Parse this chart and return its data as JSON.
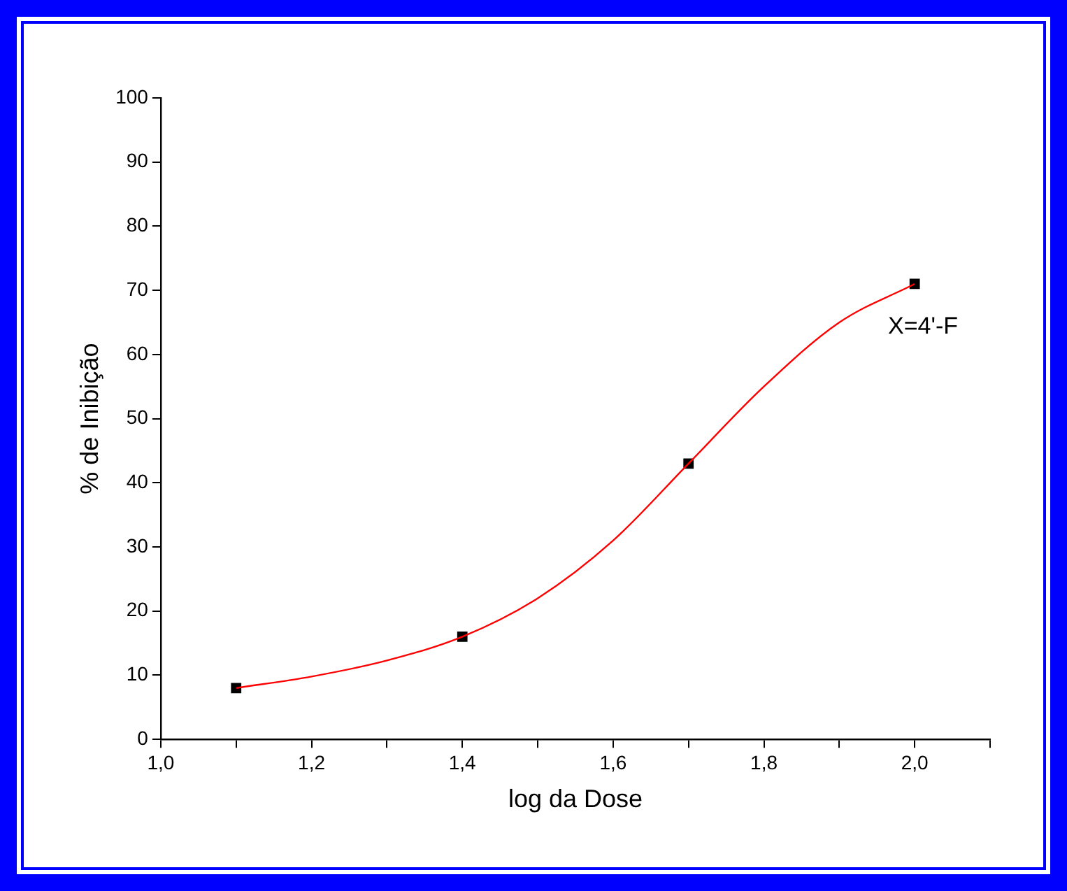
{
  "chart_data": {
    "type": "scatter",
    "xlabel": "log da Dose",
    "ylabel": "% de Inibição",
    "xlim": [
      1.0,
      2.1
    ],
    "xticks": [
      {
        "value": 1.0,
        "label": "1,0"
      },
      {
        "value": 1.1,
        "label": null
      },
      {
        "value": 1.2,
        "label": "1,2"
      },
      {
        "value": 1.3,
        "label": null
      },
      {
        "value": 1.4,
        "label": "1,4"
      },
      {
        "value": 1.5,
        "label": null
      },
      {
        "value": 1.6,
        "label": "1,6"
      },
      {
        "value": 1.7,
        "label": null
      },
      {
        "value": 1.8,
        "label": "1,8"
      },
      {
        "value": 1.9,
        "label": null
      },
      {
        "value": 2.0,
        "label": "2,0"
      },
      {
        "value": 2.1,
        "label": null
      }
    ],
    "ylim": [
      0,
      100
    ],
    "yticks": [
      0,
      10,
      20,
      30,
      40,
      50,
      60,
      70,
      80,
      90,
      100
    ],
    "grid": false,
    "legend": false,
    "series": [
      {
        "type": "line",
        "color": "#ff0000",
        "marker": "none",
        "x": [
          1.1,
          1.2,
          1.3,
          1.4,
          1.5,
          1.6,
          1.7,
          1.8,
          1.9,
          2.0
        ],
        "values": [
          8,
          9.8,
          12.3,
          16,
          22,
          31,
          43,
          55,
          65,
          71
        ]
      },
      {
        "color": "#000000",
        "marker": "square",
        "x": [
          1.1,
          1.4,
          1.7,
          2.0
        ],
        "values": [
          8,
          16,
          43,
          71
        ]
      }
    ],
    "annotations": [
      "X=4'-F"
    ]
  }
}
